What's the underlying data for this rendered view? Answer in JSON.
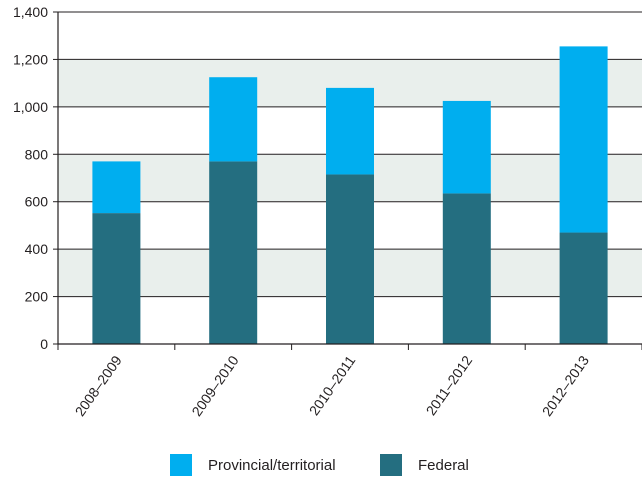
{
  "chart_data": {
    "type": "bar",
    "stacked": true,
    "categories": [
      "2008–2009",
      "2009–2010",
      "2010–2011",
      "2011–2012",
      "2012–2013"
    ],
    "series": [
      {
        "name": "Federal",
        "values": [
          552,
          770,
          715,
          635,
          470
        ],
        "color": "#246e80"
      },
      {
        "name": "Provincial/territorial",
        "values": [
          218,
          355,
          365,
          390,
          785
        ],
        "color": "#00aeef"
      }
    ],
    "ylim": [
      0,
      1400
    ],
    "yticks": [
      "0",
      "200",
      "400",
      "600",
      "800",
      "1,000",
      "1,200",
      "1,400"
    ],
    "grid": true,
    "grid_band_color": "#e9efec",
    "legend_position": "bottom",
    "legend_order": [
      "Provincial/territorial",
      "Federal"
    ]
  }
}
